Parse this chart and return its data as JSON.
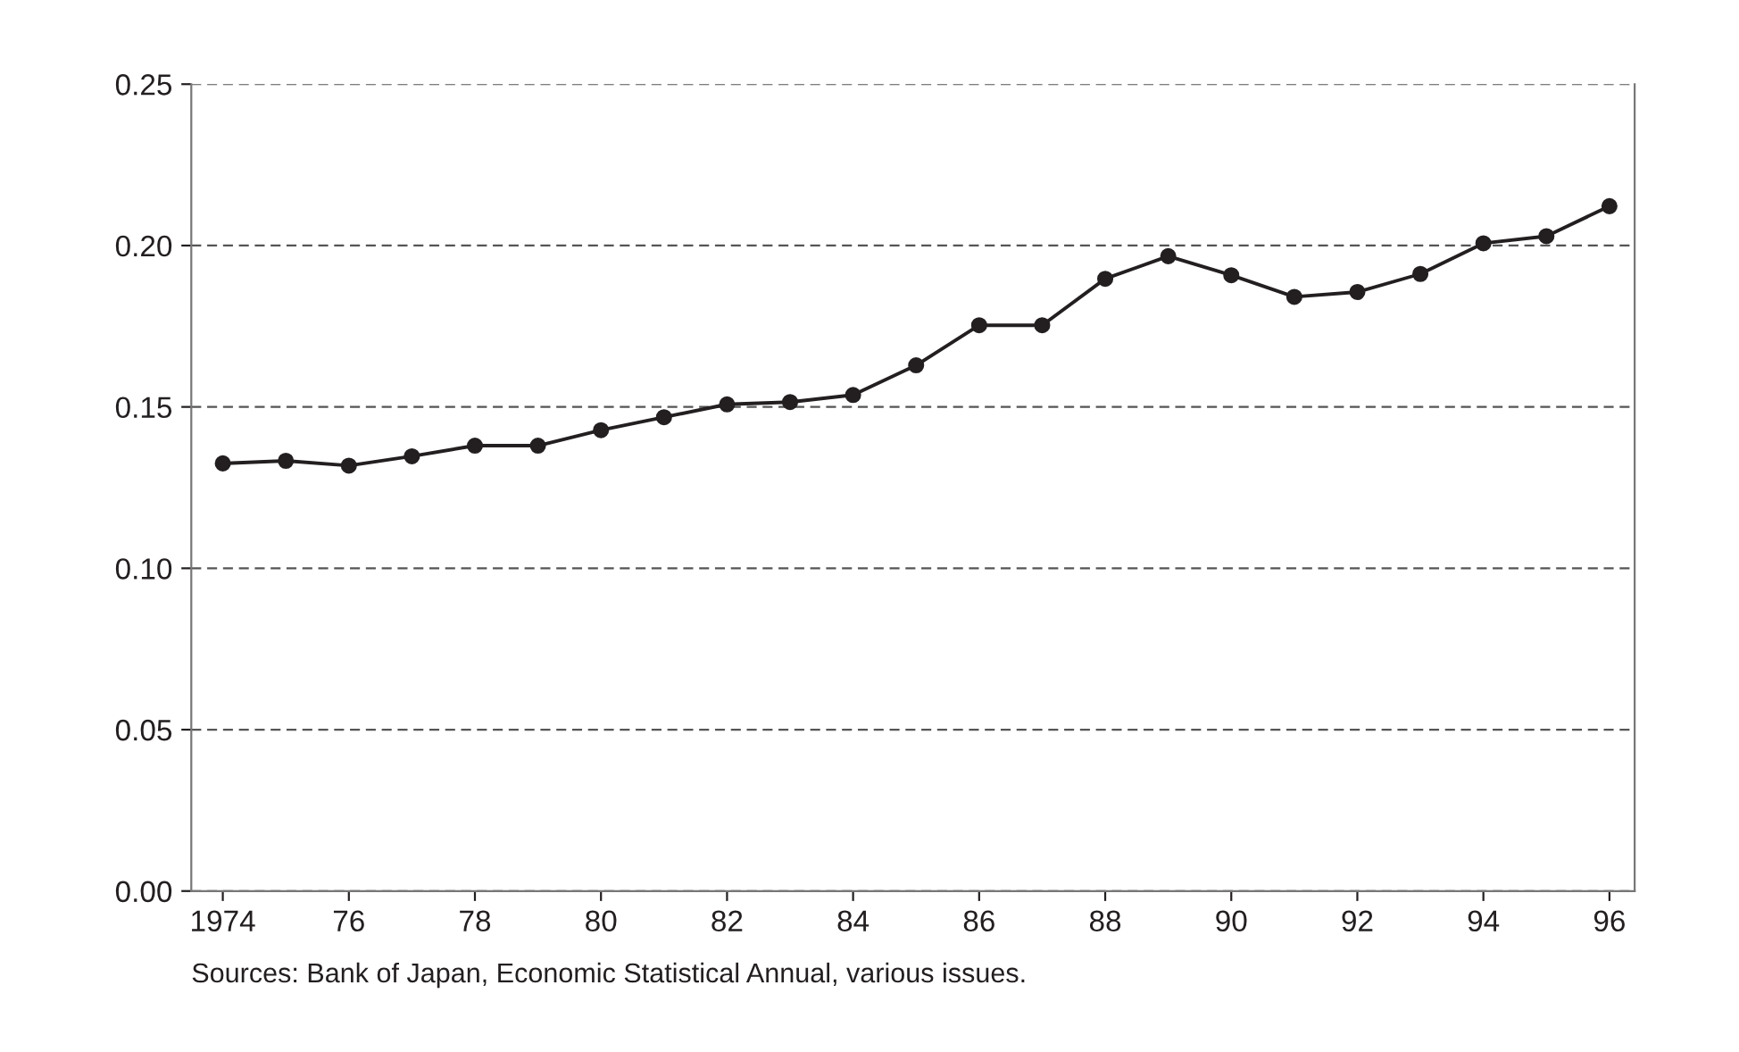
{
  "chart_data": {
    "type": "line",
    "x": [
      1974,
      1975,
      1976,
      1977,
      1978,
      1979,
      1980,
      1981,
      1982,
      1983,
      1984,
      1985,
      1986,
      1987,
      1988,
      1989,
      1990,
      1991,
      1992,
      1993,
      1994,
      1995,
      1996
    ],
    "series": [
      {
        "color": "#231f20",
        "values": [
          0.1325,
          0.1333,
          0.1318,
          0.1347,
          0.138,
          0.138,
          0.1428,
          0.1468,
          0.1508,
          0.1515,
          0.1537,
          0.1629,
          0.1753,
          0.1753,
          0.1897,
          0.1967,
          0.1908,
          0.1841,
          0.1856,
          0.1912,
          0.2007,
          0.2029,
          0.2122
        ]
      }
    ],
    "xlim": [
      1973.5,
      1996.4
    ],
    "xticks": [
      {
        "value": 1974,
        "label": "1974"
      },
      {
        "value": 1976,
        "label": "76"
      },
      {
        "value": 1978,
        "label": "78"
      },
      {
        "value": 1980,
        "label": "80"
      },
      {
        "value": 1982,
        "label": "82"
      },
      {
        "value": 1984,
        "label": "84"
      },
      {
        "value": 1986,
        "label": "86"
      },
      {
        "value": 1988,
        "label": "88"
      },
      {
        "value": 1990,
        "label": "90"
      },
      {
        "value": 1992,
        "label": "92"
      },
      {
        "value": 1994,
        "label": "94"
      },
      {
        "value": 1996,
        "label": "96"
      }
    ],
    "ylim": [
      0,
      0.25
    ],
    "yticks": [
      {
        "value": 0,
        "label": "0.00"
      },
      {
        "value": 0.05,
        "label": "0.05"
      },
      {
        "value": 0.1,
        "label": "0.10"
      },
      {
        "value": 0.15,
        "label": "0.15"
      },
      {
        "value": 0.2,
        "label": "0.20"
      },
      {
        "value": 0.25,
        "label": "0.25"
      }
    ],
    "grid": "y",
    "marker": "circle",
    "line_style": "solid",
    "legend": false,
    "annotations": [
      "Sources: Bank of Japan, Economic Statistical Annual, various issues."
    ]
  }
}
